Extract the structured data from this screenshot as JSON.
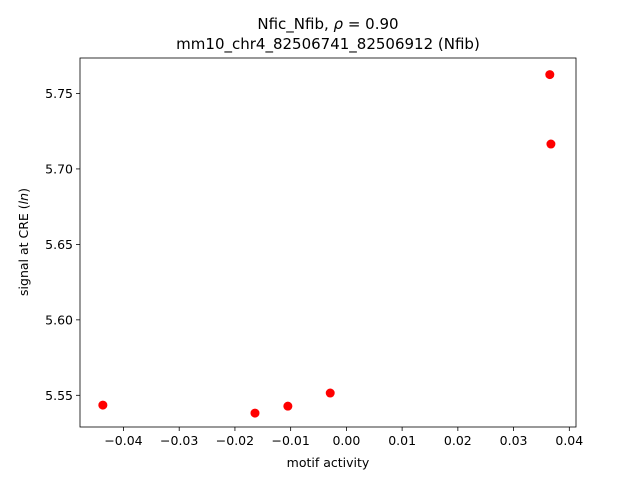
{
  "chart_data": {
    "type": "scatter",
    "title_line1_prefix": "Nfic_Nfib, ",
    "title_line1_symbol": "ρ",
    "title_line1_suffix": " = 0.90",
    "title_line2": "mm10_chr4_82506741_82506912 (Nfib)",
    "xlabel": "motif activity",
    "ylabel_prefix": "signal at CRE (",
    "ylabel_italic": "ln",
    "ylabel_suffix": ")",
    "xlim": [
      -0.0478,
      0.0412
    ],
    "ylim": [
      5.529,
      5.7735
    ],
    "xticks": [
      -0.04,
      -0.03,
      -0.02,
      -0.01,
      0.0,
      0.01,
      0.02,
      0.03,
      0.04
    ],
    "xtick_labels": [
      "−0.04",
      "−0.03",
      "−0.02",
      "−0.01",
      "0.00",
      "0.01",
      "0.02",
      "0.03",
      "0.04"
    ],
    "yticks": [
      5.55,
      5.6,
      5.65,
      5.7,
      5.75
    ],
    "ytick_labels": [
      "5.55",
      "5.60",
      "5.65",
      "5.70",
      "5.75"
    ],
    "grid": false,
    "marker_color": "#ff0000",
    "points": [
      {
        "x": -0.0437,
        "y": 5.5435
      },
      {
        "x": -0.0164,
        "y": 5.5382
      },
      {
        "x": -0.0105,
        "y": 5.5428
      },
      {
        "x": -0.0029,
        "y": 5.5515
      },
      {
        "x": 0.0365,
        "y": 5.7625
      },
      {
        "x": 0.0367,
        "y": 5.7165
      }
    ]
  }
}
